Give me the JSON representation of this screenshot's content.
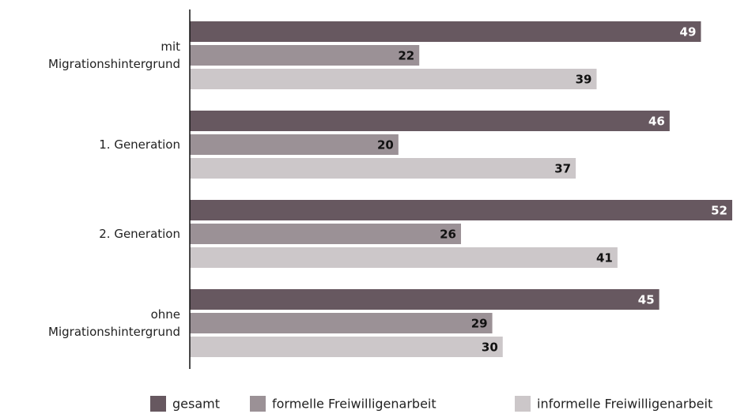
{
  "chart_data": {
    "type": "bar",
    "orientation": "horizontal",
    "categories": [
      "mit\nMigrationshintergrund",
      "1. Generation",
      "2. Generation",
      "ohne\nMigrationshintergrund"
    ],
    "series": [
      {
        "name": "gesamt",
        "color": "#675860",
        "values": [
          49,
          46,
          52,
          45
        ]
      },
      {
        "name": "formelle Freiwilligenarbeit",
        "color": "#9b9196",
        "values": [
          22,
          20,
          26,
          29
        ]
      },
      {
        "name": "informelle Freiwilligenarbeit",
        "color": "#ccc7c9",
        "values": [
          39,
          37,
          41,
          30
        ]
      }
    ],
    "legend": "bottom"
  }
}
